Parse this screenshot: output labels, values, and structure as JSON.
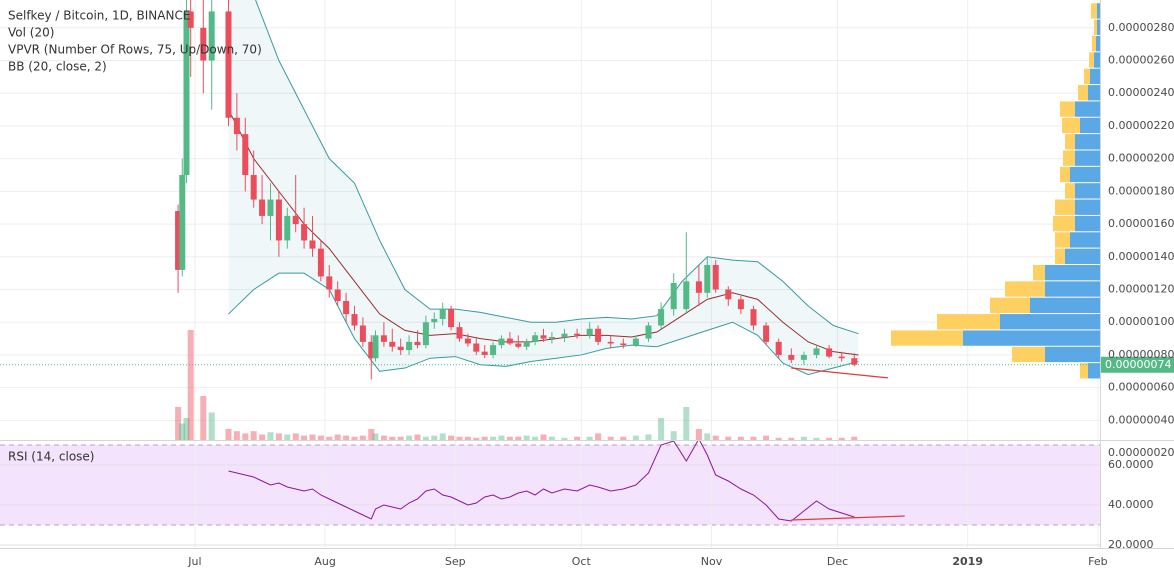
{
  "chart_data": {
    "type": "candlestick",
    "title": "Selfkey / Bitcoin, 1D, BINANCE",
    "indicators": [
      "Vol (20)",
      "VPVR (Number Of Rows, 75, Up/Down, 70)",
      "BB (20, close, 2)"
    ],
    "up_color": "#53b987",
    "down_color": "#eb4d5c",
    "grid": true,
    "xlim": [
      135.6,
      397.5
    ],
    "xticks": [
      {
        "value": 182,
        "label": "Jul"
      },
      {
        "value": 213,
        "label": "Aug"
      },
      {
        "value": 244,
        "label": "Sep"
      },
      {
        "value": 274,
        "label": "Oct"
      },
      {
        "value": 305,
        "label": "Nov"
      },
      {
        "value": 335,
        "label": "Dec"
      },
      {
        "value": 366,
        "label": "2019"
      },
      {
        "value": 397,
        "label": "Feb"
      }
    ],
    "ylim": [
      2.8e-07,
      2.97e-06
    ],
    "yticks": [
      {
        "value": 2e-07,
        "label": "0.00000020"
      },
      {
        "value": 4e-07,
        "label": "0.00000040"
      },
      {
        "value": 6e-07,
        "label": "0.00000060"
      },
      {
        "value": 8e-07,
        "label": "0.00000080"
      },
      {
        "value": 1e-06,
        "label": "0.00000100"
      },
      {
        "value": 1.2e-06,
        "label": "0.00000120"
      },
      {
        "value": 1.4e-06,
        "label": "0.00000140"
      },
      {
        "value": 1.6e-06,
        "label": "0.00000160"
      },
      {
        "value": 1.8e-06,
        "label": "0.00000180"
      },
      {
        "value": 2e-06,
        "label": "0.00000200"
      },
      {
        "value": 2.2e-06,
        "label": "0.00000220"
      },
      {
        "value": 2.4e-06,
        "label": "0.00000240"
      },
      {
        "value": 2.6e-06,
        "label": "0.00000260"
      },
      {
        "value": 2.8e-06,
        "label": "0.00000280"
      }
    ],
    "x": [
      178,
      179,
      180,
      181,
      184,
      186,
      190,
      192,
      194,
      196,
      198,
      200,
      202,
      204,
      206,
      208,
      210,
      212,
      214,
      216,
      218,
      220,
      222,
      224,
      225,
      227,
      229,
      231,
      233,
      235,
      237,
      239,
      241,
      243,
      245,
      247,
      249,
      251,
      253,
      255,
      257,
      259,
      261,
      263,
      265,
      267,
      270,
      273,
      276,
      278,
      281,
      284,
      287,
      290,
      293,
      296,
      299,
      302,
      304,
      306,
      309,
      312,
      315,
      318,
      321,
      324,
      327,
      330,
      333,
      336,
      339
    ],
    "open": [
      1.68e-06,
      1.32e-06,
      1.9e-06,
      2.9e-06,
      2.8e-06,
      2.6e-06,
      2.9e-06,
      2.25e-06,
      2.15e-06,
      1.9e-06,
      1.75e-06,
      1.65e-06,
      1.75e-06,
      1.5e-06,
      1.65e-06,
      1.6e-06,
      1.5e-06,
      1.45e-06,
      1.28e-06,
      1.2e-06,
      1.13e-06,
      1.05e-06,
      9.8e-07,
      8.8e-07,
      7.8e-07,
      9.2e-07,
      8.8e-07,
      8.5e-07,
      8.3e-07,
      8.8e-07,
      8.6e-07,
      1e-06,
      1.02e-06,
      1.08e-06,
      9.7e-07,
      9e-07,
      8.7e-07,
      8.2e-07,
      8e-07,
      8.6e-07,
      9e-07,
      8.7e-07,
      8.5e-07,
      8.8e-07,
      9.2e-07,
      9e-07,
      9.1e-07,
      9.3e-07,
      9.2e-07,
      9.6e-07,
      8.8e-07,
      8.7e-07,
      8.6e-07,
      9e-07,
      9.8e-07,
      1.08e-06,
      1.08e-06,
      1.25e-06,
      1.18e-06,
      1.35e-06,
      1.2e-06,
      1.14e-06,
      1.08e-06,
      9.8e-07,
      8.8e-07,
      8e-07,
      7.7e-07,
      8e-07,
      8.4e-07,
      7.9e-07,
      7.8e-07
    ],
    "high": [
      1.72e-06,
      2e-06,
      3e-06,
      3e-06,
      3e-06,
      3e-06,
      3e-06,
      2.4e-06,
      2.25e-06,
      2.05e-06,
      1.9e-06,
      1.85e-06,
      1.8e-06,
      1.7e-06,
      1.9e-06,
      1.7e-06,
      1.65e-06,
      1.5e-06,
      1.35e-06,
      1.25e-06,
      1.18e-06,
      1.1e-06,
      1.03e-06,
      9.2e-07,
      9.5e-07,
      1e-06,
      9.6e-07,
      9e-07,
      9.2e-07,
      9.5e-07,
      1.04e-06,
      1.06e-06,
      1.12e-06,
      1.1e-06,
      1e-06,
      9.3e-07,
      9e-07,
      8.6e-07,
      8.8e-07,
      9.2e-07,
      9.4e-07,
      9.2e-07,
      9e-07,
      9.4e-07,
      9.6e-07,
      9.4e-07,
      9.6e-07,
      9.6e-07,
      1e-06,
      9.8e-07,
      9.2e-07,
      9e-07,
      9.2e-07,
      1e-06,
      1.12e-06,
      1.3e-06,
      1.55e-06,
      1.35e-06,
      1.4e-06,
      1.38e-06,
      1.22e-06,
      1.16e-06,
      1.1e-06,
      1e-06,
      9e-07,
      8.4e-07,
      8.2e-07,
      8.6e-07,
      8.6e-07,
      8.2e-07,
      8.1e-07
    ],
    "low": [
      1.18e-06,
      1.28e-06,
      1.85e-06,
      2.5e-06,
      2.4e-06,
      2.3e-06,
      2.2e-06,
      2.05e-06,
      1.8e-06,
      1.7e-06,
      1.6e-06,
      1.5e-06,
      1.4e-06,
      1.45e-06,
      1.55e-06,
      1.45e-06,
      1.4e-06,
      1.25e-06,
      1.15e-06,
      1.1e-06,
      1e-06,
      9.5e-07,
      8.5e-07,
      6.5e-07,
      7.6e-07,
      8.5e-07,
      8.2e-07,
      8e-07,
      8e-07,
      8.4e-07,
      8.4e-07,
      9.6e-07,
      9.8e-07,
      9.5e-07,
      8.8e-07,
      8.5e-07,
      8e-07,
      7.8e-07,
      7.8e-07,
      8.4e-07,
      8.6e-07,
      8.4e-07,
      8.3e-07,
      8.6e-07,
      8.8e-07,
      8.7e-07,
      8.8e-07,
      9e-07,
      9e-07,
      8.6e-07,
      8.4e-07,
      8.4e-07,
      8.5e-07,
      8.8e-07,
      9.6e-07,
      1.04e-06,
      1.05e-06,
      1.1e-06,
      1.15e-06,
      1.18e-06,
      1.1e-06,
      1.05e-06,
      9.5e-07,
      8.6e-07,
      7.8e-07,
      7.5e-07,
      7.4e-07,
      7.8e-07,
      7.8e-07,
      7.6e-07,
      7.3e-07
    ],
    "close": [
      1.32e-06,
      1.9e-06,
      2.9e-06,
      2.8e-06,
      2.6e-06,
      2.9e-06,
      2.25e-06,
      2.15e-06,
      1.9e-06,
      1.75e-06,
      1.65e-06,
      1.75e-06,
      1.5e-06,
      1.65e-06,
      1.6e-06,
      1.5e-06,
      1.45e-06,
      1.28e-06,
      1.2e-06,
      1.13e-06,
      1.05e-06,
      9.8e-07,
      8.8e-07,
      7.8e-07,
      9.2e-07,
      8.8e-07,
      8.5e-07,
      8.3e-07,
      8.8e-07,
      8.6e-07,
      1e-06,
      1.02e-06,
      1.08e-06,
      9.7e-07,
      9e-07,
      8.7e-07,
      8.2e-07,
      8e-07,
      8.6e-07,
      9e-07,
      8.7e-07,
      8.5e-07,
      8.8e-07,
      9.2e-07,
      9e-07,
      9.1e-07,
      9.3e-07,
      9.2e-07,
      9.6e-07,
      8.8e-07,
      8.7e-07,
      8.6e-07,
      9e-07,
      9.8e-07,
      1.08e-06,
      1.24e-06,
      1.25e-06,
      1.18e-06,
      1.35e-06,
      1.2e-06,
      1.14e-06,
      1.08e-06,
      9.8e-07,
      8.8e-07,
      8e-07,
      7.7e-07,
      8e-07,
      8.4e-07,
      7.9e-07,
      7.8e-07,
      7.4e-07
    ],
    "volume": [
      30,
      15,
      20,
      100,
      40,
      25,
      10,
      8,
      6,
      8,
      5,
      7,
      6,
      5,
      6,
      4,
      5,
      4,
      3,
      5,
      4,
      3,
      4,
      10,
      6,
      4,
      3,
      3,
      4,
      5,
      3,
      4,
      6,
      4,
      3,
      3,
      2,
      3,
      3,
      4,
      3,
      3,
      4,
      3,
      5,
      3,
      2,
      3,
      3,
      6,
      3,
      3,
      4,
      5,
      20,
      8,
      30,
      10,
      6,
      4,
      3,
      3,
      3,
      4,
      2,
      2,
      3,
      2,
      2,
      2,
      3
    ],
    "volume_lim": [
      0,
      100
    ],
    "last_price": 7.4e-07,
    "last_price_label": "0.00000074",
    "bollinger": {
      "x": [
        190,
        196,
        202,
        208,
        214,
        220,
        226,
        232,
        238,
        244,
        250,
        256,
        262,
        268,
        274,
        280,
        286,
        292,
        298,
        304,
        310,
        316,
        322,
        328,
        334,
        340
      ],
      "upper": [
        3e-06,
        3e-06,
        2.6e-06,
        2.3e-06,
        2e-06,
        1.85e-06,
        1.5e-06,
        1.2e-06,
        1.08e-06,
        1.08e-06,
        1.06e-06,
        1.03e-06,
        1e-06,
        1e-06,
        1.02e-06,
        1.03e-06,
        1.02e-06,
        1.04e-06,
        1.25e-06,
        1.4e-06,
        1.38e-06,
        1.37e-06,
        1.25e-06,
        1.1e-06,
        9.8e-07,
        9.3e-07
      ],
      "middle": [
        2.3e-06,
        2e-06,
        1.8e-06,
        1.6e-06,
        1.45e-06,
        1.25e-06,
        1.05e-06,
        9.5e-07,
        9.2e-07,
        9.3e-07,
        9e-07,
        8.8e-07,
        8.8e-07,
        9e-07,
        9.2e-07,
        9.2e-07,
        9.1e-07,
        9.4e-07,
        1.04e-06,
        1.14e-06,
        1.18e-06,
        1.14e-06,
        1e-06,
        8.8e-07,
        8.2e-07,
        8e-07
      ],
      "lower": [
        1.05e-06,
        1.2e-06,
        1.3e-06,
        1.3e-06,
        1.2e-06,
        9e-07,
        7e-07,
        7.2e-07,
        7.8e-07,
        7.9e-07,
        7.4e-07,
        7.3e-07,
        7.6e-07,
        7.8e-07,
        8e-07,
        8.4e-07,
        8.6e-07,
        8.5e-07,
        9e-07,
        9.5e-07,
        1e-06,
        9.2e-07,
        7.5e-07,
        6.8e-07,
        7.2e-07,
        7.6e-07
      ],
      "band_color": "#369ca0",
      "middle_color": "#9b2c2c"
    },
    "trendline": {
      "x": [
        324,
        347
      ],
      "values": [
        7.2e-07,
        6.6e-07
      ],
      "color": "#e53935"
    },
    "volume_profile": {
      "bins": [
        6.5e-07,
        7.5e-07,
        8.5e-07,
        9.5e-07,
        1.05e-06,
        1.15e-06,
        1.25e-06,
        1.35e-06,
        1.45e-06,
        1.55e-06,
        1.65e-06,
        1.75e-06,
        1.85e-06,
        1.95e-06,
        2.05e-06,
        2.15e-06,
        2.25e-06,
        2.35e-06,
        2.45e-06,
        2.55e-06,
        2.65e-06,
        2.75e-06,
        2.85e-06,
        2.95e-06
      ],
      "up": [
        12,
        55,
        137,
        100,
        70,
        55,
        55,
        35,
        30,
        25,
        25,
        25,
        30,
        25,
        25,
        20,
        25,
        12,
        10,
        6,
        4,
        3,
        3
      ],
      "down": [
        8,
        33,
        72,
        63,
        40,
        40,
        12,
        10,
        15,
        22,
        20,
        10,
        10,
        12,
        10,
        18,
        15,
        10,
        6,
        5,
        4,
        3,
        6
      ],
      "xlim": [
        0,
        1100
      ],
      "up_color": "#5aa9e6",
      "down_color": "#fdd061"
    },
    "rsi": {
      "title": "RSI (14, close)",
      "values": [
        null,
        null,
        null,
        null,
        null,
        null,
        57,
        56,
        55,
        54,
        52,
        50,
        51,
        49,
        48,
        47,
        48,
        45,
        43,
        41,
        39,
        37,
        35,
        33,
        38,
        40,
        39,
        38,
        41,
        43,
        47,
        48,
        45,
        44,
        42,
        40,
        41,
        44,
        45,
        43,
        44,
        46,
        47,
        45,
        48,
        46,
        48,
        47,
        50,
        49,
        47,
        48,
        50,
        56,
        70,
        72,
        62,
        73,
        65,
        55,
        52,
        48,
        45,
        40,
        33,
        32,
        37,
        42,
        38,
        36,
        34
      ],
      "color": "#8e1599",
      "ylim": [
        18.5,
        72
      ],
      "yticks": [
        {
          "value": 20,
          "label": "20.0000"
        },
        {
          "value": 40,
          "label": "40.0000"
        },
        {
          "value": 60,
          "label": "60.0000"
        }
      ],
      "band": [
        30,
        70
      ],
      "trendline": {
        "x": [
          324,
          351
        ],
        "values": [
          32.5,
          34.5
        ]
      }
    }
  }
}
